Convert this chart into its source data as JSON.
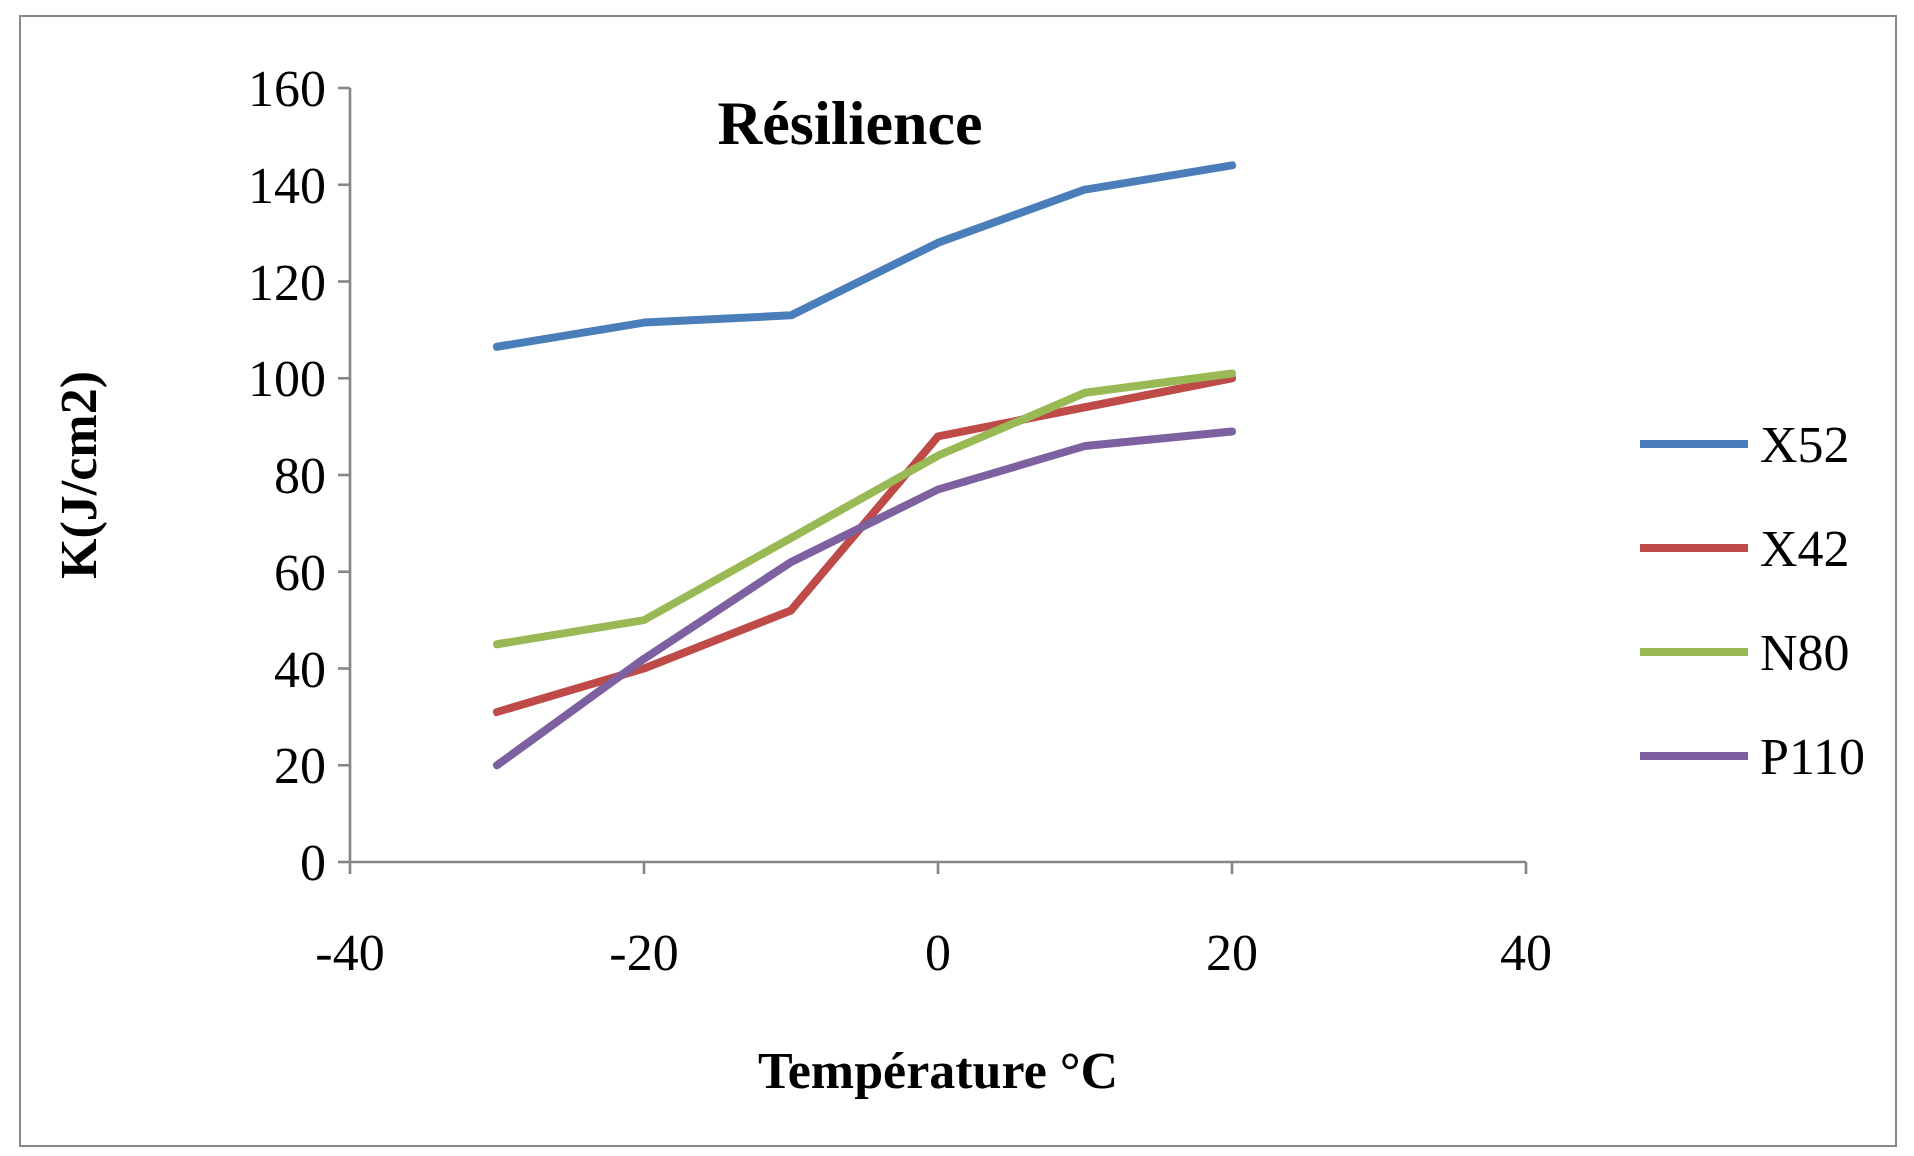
{
  "chart_data": {
    "type": "line",
    "title": "Résilience",
    "xlabel": "Température °C",
    "ylabel": "K(J/cm2)",
    "x": [
      -30,
      -20,
      -10,
      0,
      10,
      20
    ],
    "series": [
      {
        "name": "X52",
        "color": "#4a7ebb",
        "values": [
          106.5,
          111.5,
          113,
          128,
          139,
          144
        ]
      },
      {
        "name": "X42",
        "color": "#be4b48",
        "values": [
          31,
          40,
          52,
          88,
          94,
          100
        ]
      },
      {
        "name": "N80",
        "color": "#98b954",
        "values": [
          45,
          50,
          67,
          84,
          97,
          101
        ]
      },
      {
        "name": "P110",
        "color": "#7d60a0",
        "values": [
          20,
          42,
          62,
          77,
          86,
          89
        ]
      }
    ],
    "xlim": [
      -40,
      40
    ],
    "xticks": [
      -40,
      -20,
      0,
      20,
      40
    ],
    "ylim": [
      0,
      160
    ],
    "yticks": [
      0,
      20,
      40,
      60,
      80,
      100,
      120,
      140,
      160
    ],
    "grid": false,
    "legend": "right",
    "marker": "none",
    "line_style": "solid"
  }
}
